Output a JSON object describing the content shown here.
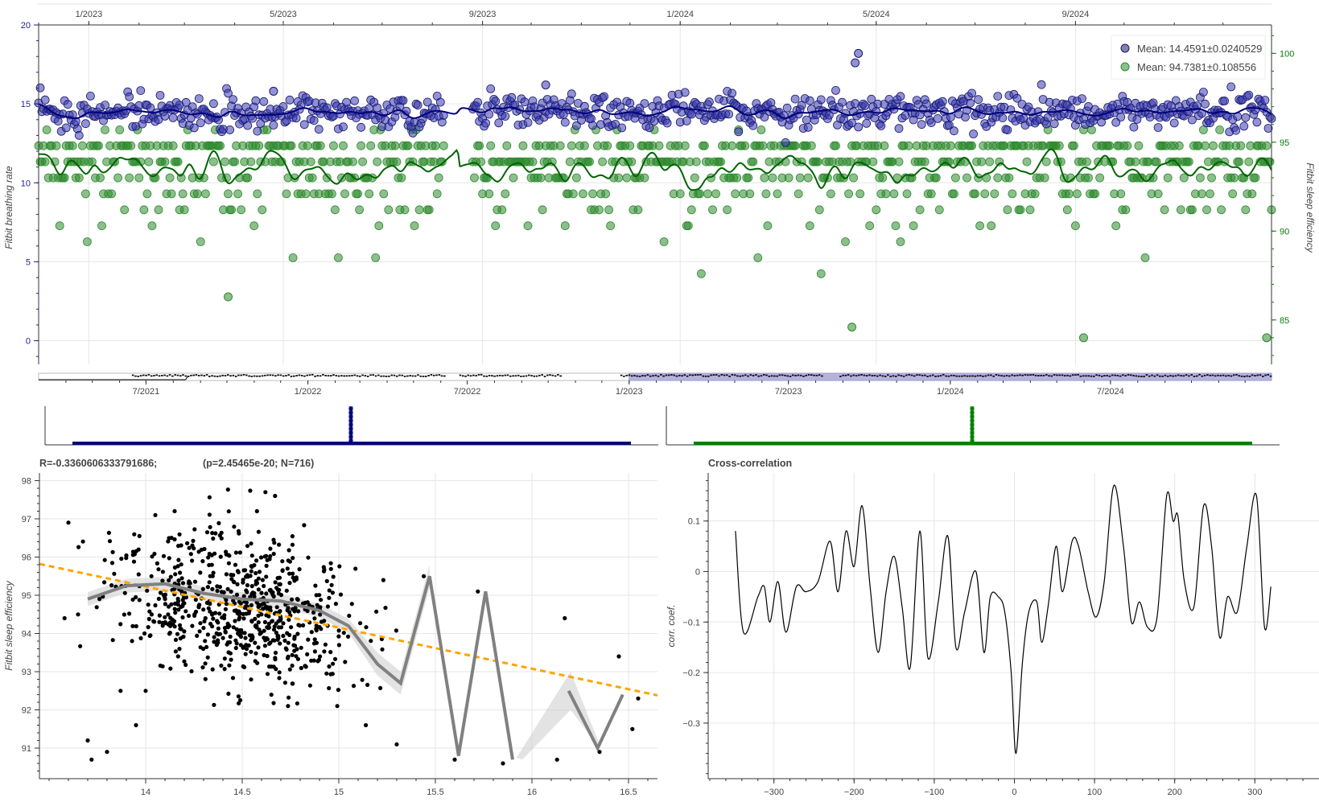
{
  "chart_data": [
    {
      "id": "timeseries",
      "type": "scatter",
      "x_ticks": [
        "1/2023",
        "5/2023",
        "9/2023",
        "1/2024",
        "5/2024",
        "9/2024"
      ],
      "x_range": [
        "2022-12-01",
        "2024-12-31"
      ],
      "ylabel_left": "Fitbit breathing rate",
      "ylabel_right": "Fitbit sleep efficiency",
      "ylim_left": [
        -1.5,
        20
      ],
      "ylim_right": [
        82.5,
        101.6
      ],
      "yticks_left": [
        0,
        5,
        10,
        15,
        20
      ],
      "yticks_right": [
        85,
        90,
        95,
        100
      ],
      "legend_position": "top-right",
      "series": [
        {
          "name": "Mean: 14.4591±0.0240529",
          "axis": "left",
          "color": "#191970",
          "mean": 14.4591,
          "std": 0.5,
          "outliers": [
            [
              "2024-04-20",
              18.2
            ],
            [
              "2024-04-18",
              17.6
            ],
            [
              "2023-10-10",
              16.2
            ],
            [
              "2023-04-25",
              15.8
            ]
          ]
        },
        {
          "name": "Mean: 94.7381±0.108556",
          "axis": "right",
          "color": "#2e8b2e",
          "mean": 94.7381,
          "std": 2.3,
          "outliers": [
            [
              "2024-04-16",
              84.6
            ],
            [
              "2024-09-06",
              84.0
            ],
            [
              "2024-12-28",
              84.0
            ],
            [
              "2023-03-28",
              86.3
            ]
          ]
        }
      ],
      "smoothed": [
        {
          "name": "breathing rate smoothed",
          "color": "#00007a"
        },
        {
          "name": "sleep efficiency smoothed",
          "color": "#006400"
        }
      ]
    },
    {
      "id": "range_selector",
      "type": "line",
      "x_ticks": [
        "7/2021",
        "1/2022",
        "7/2022",
        "1/2023",
        "7/2023",
        "1/2024",
        "7/2024"
      ],
      "selection": [
        "1/2023",
        "12/2024"
      ]
    },
    {
      "id": "histograms",
      "type": "bar",
      "series": [
        {
          "name": "breathing rate distribution",
          "color": "#00007a"
        },
        {
          "name": "sleep efficiency distribution",
          "color": "#008000"
        }
      ]
    },
    {
      "id": "regression",
      "type": "scatter",
      "title_left": "R=-0.3360606333791686;",
      "title_right": "(p=2.45465e-20; N=716)",
      "ylabel": "Fitbit sleep efficiency",
      "xlim": [
        13.45,
        16.65
      ],
      "ylim": [
        90.2,
        98.2
      ],
      "xticks": [
        14,
        14.5,
        15,
        15.5,
        16,
        16.5
      ],
      "yticks": [
        91,
        92,
        93,
        94,
        95,
        96,
        97,
        98
      ],
      "fit_line": {
        "points": [
          [
            13.45,
            95.82
          ],
          [
            16.65,
            92.38
          ]
        ],
        "color": "#ffa500"
      },
      "smooth_line": {
        "color": "#808080",
        "points": [
          [
            13.7,
            94.9
          ],
          [
            13.9,
            95.25
          ],
          [
            14.1,
            95.3
          ],
          [
            14.3,
            95.05
          ],
          [
            14.5,
            94.9
          ],
          [
            14.7,
            94.85
          ],
          [
            14.9,
            94.6
          ],
          [
            15.05,
            94.2
          ],
          [
            15.2,
            93.2
          ],
          [
            15.32,
            92.7
          ],
          [
            15.47,
            95.5
          ],
          [
            15.62,
            90.8
          ],
          [
            15.76,
            95.1
          ],
          [
            15.9,
            90.7
          ]
        ],
        "points2": [
          [
            16.19,
            92.5
          ],
          [
            16.34,
            91.0
          ],
          [
            16.47,
            92.4
          ]
        ]
      },
      "outliers": [
        [
          13.6,
          96.9
        ],
        [
          13.65,
          94.5
        ],
        [
          13.7,
          91.2
        ],
        [
          13.72,
          90.7
        ],
        [
          13.8,
          90.9
        ],
        [
          13.87,
          92.5
        ],
        [
          13.95,
          91.6
        ],
        [
          14.0,
          92.5
        ],
        [
          14.05,
          97.1
        ],
        [
          14.15,
          97.2
        ],
        [
          14.03,
          95.5
        ],
        [
          15.44,
          95.5
        ],
        [
          15.72,
          95.1
        ],
        [
          15.6,
          90.7
        ],
        [
          15.85,
          90.6
        ],
        [
          16.17,
          94.4
        ],
        [
          16.13,
          90.7
        ],
        [
          16.35,
          90.9
        ],
        [
          16.45,
          93.4
        ],
        [
          16.52,
          91.5
        ],
        [
          16.55,
          92.3
        ],
        [
          15.14,
          91.6
        ],
        [
          15.3,
          91.1
        ],
        [
          14.67,
          97.6
        ],
        [
          14.62,
          97.7
        ],
        [
          13.58,
          94.4
        ]
      ]
    },
    {
      "id": "cross_correlation",
      "type": "line",
      "title": "Cross-correlation",
      "ylabel": "corr. coef.",
      "xlim": [
        -382,
        380
      ],
      "ylim": [
        -0.41,
        0.195
      ],
      "xticks": [
        -300,
        -200,
        -100,
        0,
        100,
        200,
        300
      ],
      "yticks": [
        0.1,
        0,
        -0.1,
        -0.2,
        -0.3
      ],
      "anchors": [
        [
          -348,
          0.08
        ],
        [
          -338,
          -0.12
        ],
        [
          -320,
          -0.05
        ],
        [
          -312,
          -0.03
        ],
        [
          -305,
          -0.1
        ],
        [
          -295,
          -0.02
        ],
        [
          -285,
          -0.12
        ],
        [
          -272,
          -0.03
        ],
        [
          -260,
          -0.04
        ],
        [
          -245,
          -0.02
        ],
        [
          -230,
          0.06
        ],
        [
          -220,
          -0.04
        ],
        [
          -210,
          0.08
        ],
        [
          -200,
          0.01
        ],
        [
          -190,
          0.13
        ],
        [
          -180,
          -0.03
        ],
        [
          -170,
          -0.16
        ],
        [
          -160,
          -0.04
        ],
        [
          -150,
          0.03
        ],
        [
          -140,
          -0.07
        ],
        [
          -130,
          -0.19
        ],
        [
          -118,
          0.08
        ],
        [
          -108,
          -0.17
        ],
        [
          -95,
          -0.06
        ],
        [
          -83,
          0.07
        ],
        [
          -73,
          -0.15
        ],
        [
          -62,
          -0.08
        ],
        [
          -48,
          0.0
        ],
        [
          -38,
          -0.16
        ],
        [
          -30,
          -0.05
        ],
        [
          -20,
          -0.05
        ],
        [
          -12,
          -0.08
        ],
        [
          -4,
          -0.2
        ],
        [
          2,
          -0.36
        ],
        [
          10,
          -0.18
        ],
        [
          18,
          -0.08
        ],
        [
          28,
          -0.06
        ],
        [
          34,
          -0.14
        ],
        [
          42,
          -0.07
        ],
        [
          52,
          0.05
        ],
        [
          60,
          -0.04
        ],
        [
          72,
          0.06
        ],
        [
          80,
          0.05
        ],
        [
          92,
          -0.04
        ],
        [
          102,
          -0.09
        ],
        [
          112,
          -0.02
        ],
        [
          124,
          0.17
        ],
        [
          136,
          0.05
        ],
        [
          146,
          -0.1
        ],
        [
          156,
          -0.06
        ],
        [
          166,
          -0.11
        ],
        [
          178,
          -0.09
        ],
        [
          190,
          0.15
        ],
        [
          198,
          0.1
        ],
        [
          204,
          0.11
        ],
        [
          212,
          -0.02
        ],
        [
          224,
          -0.07
        ],
        [
          236,
          0.13
        ],
        [
          246,
          0.05
        ],
        [
          256,
          -0.13
        ],
        [
          266,
          -0.05
        ],
        [
          278,
          -0.08
        ],
        [
          290,
          0.05
        ],
        [
          302,
          0.15
        ],
        [
          312,
          -0.11
        ],
        [
          320,
          -0.03
        ]
      ]
    }
  ]
}
